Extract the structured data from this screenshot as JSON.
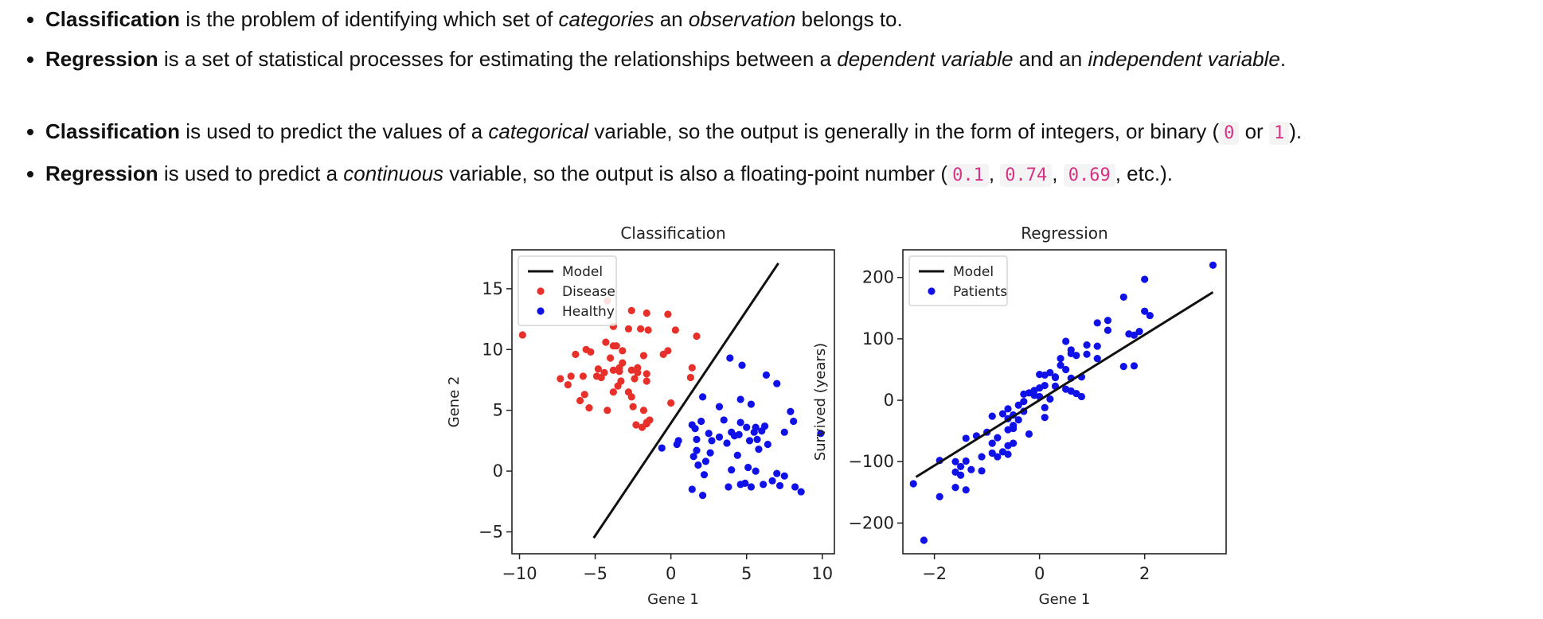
{
  "definitions": {
    "classification": {
      "term": "Classification",
      "text1": " is the problem of identifying which set of ",
      "em1": "categories",
      "text2": " an ",
      "em2": "observation",
      "text3": " belongs to."
    },
    "regression": {
      "term": "Regression",
      "text1": " is a set of statistical processes for estimating the relationships between a ",
      "em1": "dependent variable",
      "text2": " and an ",
      "em2": "independent variable",
      "text3": "."
    }
  },
  "usage": {
    "classification": {
      "term": "Classification",
      "text1": " is used to predict the values of a ",
      "em1": "categorical",
      "text2": " variable, so the output is generally in the form of integers, or binary (",
      "code1": "0",
      "text3": " or ",
      "code2": "1",
      "text4": ")."
    },
    "regression": {
      "term": "Regression",
      "text1": " is used to predict a ",
      "em1": "continuous",
      "text2": " variable, so the output is also a floating-point number (",
      "code1": "0.1",
      "sep1": ", ",
      "code2": "0.74",
      "sep2": ", ",
      "code3": "0.69",
      "text3": ", etc.)."
    }
  },
  "chart_data": [
    {
      "type": "scatter",
      "title": "Classification",
      "xlabel": "Gene 1",
      "ylabel": "Gene 2",
      "xlim": [
        -10.5,
        10.8
      ],
      "ylim": [
        -6.8,
        18.2
      ],
      "xticks": [
        "−10",
        "−5",
        "0",
        "5",
        "10"
      ],
      "xtick_values": [
        -10,
        -5,
        0,
        5,
        10
      ],
      "yticks": [
        "−5",
        "0",
        "5",
        "10",
        "15"
      ],
      "ytick_values": [
        -5,
        0,
        5,
        10,
        15
      ],
      "legend_position": "top-left",
      "legend": [
        "Model",
        "Disease",
        "Healthy"
      ],
      "colors": {
        "model": "#111111",
        "disease": "#e8302a",
        "healthy": "#1010e8"
      },
      "model_line": {
        "x": [
          -5.1,
          7.1
        ],
        "y": [
          -5.5,
          17.1
        ]
      },
      "series": [
        {
          "name": "Disease",
          "points": [
            [
              -9.8,
              11.2
            ],
            [
              -4.2,
              14.0
            ],
            [
              -2.6,
              13.2
            ],
            [
              -1.6,
              13.0
            ],
            [
              -3.8,
              11.9
            ],
            [
              -2.8,
              11.7
            ],
            [
              -2.0,
              11.7
            ],
            [
              -1.5,
              11.6
            ],
            [
              -0.2,
              12.9
            ],
            [
              0.3,
              11.6
            ],
            [
              1.7,
              11.1
            ],
            [
              -4.3,
              10.6
            ],
            [
              -3.8,
              10.3
            ],
            [
              -3.6,
              10.3
            ],
            [
              -5.6,
              10.0
            ],
            [
              -6.3,
              9.6
            ],
            [
              -5.3,
              9.8
            ],
            [
              -3.2,
              9.9
            ],
            [
              -1.8,
              9.5
            ],
            [
              -0.5,
              9.6
            ],
            [
              -0.2,
              9.9
            ],
            [
              -4.0,
              9.3
            ],
            [
              -3.2,
              8.9
            ],
            [
              -2.2,
              8.5
            ],
            [
              -3.4,
              8.2
            ],
            [
              -2.6,
              8.3
            ],
            [
              -2.2,
              8.1
            ],
            [
              -4.8,
              8.4
            ],
            [
              -4.4,
              8.1
            ],
            [
              -3.8,
              8.3
            ],
            [
              -3.4,
              8.5
            ],
            [
              -4.9,
              7.8
            ],
            [
              -1.6,
              8.0
            ],
            [
              1.4,
              8.5
            ],
            [
              -7.3,
              7.6
            ],
            [
              -6.8,
              7.1
            ],
            [
              -6.6,
              7.8
            ],
            [
              -5.8,
              7.8
            ],
            [
              -4.6,
              7.7
            ],
            [
              -3.3,
              7.4
            ],
            [
              -2.4,
              7.6
            ],
            [
              -1.6,
              7.4
            ],
            [
              1.3,
              7.7
            ],
            [
              -3.5,
              7.0
            ],
            [
              -6.0,
              5.8
            ],
            [
              -5.4,
              5.2
            ],
            [
              -4.2,
              5.0
            ],
            [
              -2.6,
              6.1
            ],
            [
              -2.5,
              5.3
            ],
            [
              -1.8,
              5.0
            ],
            [
              -1.4,
              4.2
            ],
            [
              -1.6,
              3.9
            ],
            [
              -2.3,
              3.8
            ],
            [
              -1.9,
              3.6
            ],
            [
              -1.6,
              4.0
            ],
            [
              -2.8,
              6.5
            ],
            [
              -5.7,
              6.3
            ],
            [
              0.0,
              5.6
            ],
            [
              -3.8,
              6.5
            ]
          ]
        },
        {
          "name": "Healthy",
          "points": [
            [
              3.9,
              9.3
            ],
            [
              4.7,
              8.7
            ],
            [
              6.3,
              7.9
            ],
            [
              7.0,
              7.2
            ],
            [
              2.1,
              6.1
            ],
            [
              4.6,
              5.9
            ],
            [
              5.3,
              5.5
            ],
            [
              3.2,
              5.3
            ],
            [
              7.9,
              4.9
            ],
            [
              8.1,
              4.1
            ],
            [
              1.4,
              3.8
            ],
            [
              2.0,
              4.1
            ],
            [
              3.5,
              4.2
            ],
            [
              4.6,
              4.0
            ],
            [
              5.0,
              3.6
            ],
            [
              5.6,
              3.6
            ],
            [
              6.2,
              3.7
            ],
            [
              1.6,
              3.5
            ],
            [
              2.5,
              3.1
            ],
            [
              4.0,
              3.2
            ],
            [
              4.2,
              2.9
            ],
            [
              4.5,
              3.0
            ],
            [
              5.5,
              3.2
            ],
            [
              6.0,
              3.3
            ],
            [
              7.5,
              3.2
            ],
            [
              3.2,
              2.8
            ],
            [
              1.7,
              2.6
            ],
            [
              -0.6,
              1.9
            ],
            [
              0.4,
              2.2
            ],
            [
              0.5,
              2.5
            ],
            [
              2.7,
              2.5
            ],
            [
              3.7,
              2.3
            ],
            [
              5.2,
              2.5
            ],
            [
              5.7,
              2.6
            ],
            [
              6.4,
              2.2
            ],
            [
              1.7,
              1.7
            ],
            [
              4.4,
              1.3
            ],
            [
              5.8,
              1.8
            ],
            [
              9.9,
              3.1
            ],
            [
              1.5,
              1.2
            ],
            [
              2.6,
              1.5
            ],
            [
              1.8,
              0.5
            ],
            [
              2.3,
              0.8
            ],
            [
              4.0,
              0.1
            ],
            [
              5.1,
              0.3
            ],
            [
              5.6,
              0.0
            ],
            [
              2.2,
              -0.3
            ],
            [
              7.0,
              -0.2
            ],
            [
              7.5,
              -0.4
            ],
            [
              6.7,
              -0.8
            ],
            [
              8.2,
              -1.3
            ],
            [
              8.6,
              -1.7
            ],
            [
              7.2,
              -1.2
            ],
            [
              6.1,
              -1.1
            ],
            [
              4.6,
              -1.1
            ],
            [
              4.9,
              -1.0
            ],
            [
              5.3,
              -1.3
            ],
            [
              1.4,
              -1.5
            ],
            [
              2.1,
              -2.0
            ],
            [
              3.8,
              -1.3
            ]
          ]
        }
      ]
    },
    {
      "type": "scatter",
      "title": "Regression",
      "xlabel": "Gene 1",
      "ylabel": "Survived (years)",
      "xlim": [
        -2.6,
        3.55
      ],
      "ylim": [
        -250,
        245
      ],
      "xticks": [
        "−2",
        "0",
        "2"
      ],
      "xtick_values": [
        -2,
        0,
        2
      ],
      "yticks": [
        "−200",
        "−100",
        "0",
        "100",
        "200"
      ],
      "ytick_values": [
        -200,
        -100,
        0,
        100,
        200
      ],
      "legend_position": "top-left",
      "legend": [
        "Model",
        "Patients"
      ],
      "colors": {
        "model": "#111111",
        "patients": "#1010e8"
      },
      "model_line": {
        "x": [
          -2.35,
          3.3
        ],
        "y": [
          -125,
          176
        ]
      },
      "series": [
        {
          "name": "Patients",
          "points": [
            [
              3.3,
              220
            ],
            [
              2.0,
              197
            ],
            [
              1.6,
              168
            ],
            [
              2.0,
              145
            ],
            [
              2.1,
              138
            ],
            [
              1.3,
              130
            ],
            [
              1.1,
              126
            ],
            [
              1.3,
              114
            ],
            [
              1.9,
              112
            ],
            [
              1.7,
              108
            ],
            [
              1.8,
              106
            ],
            [
              0.9,
              90
            ],
            [
              1.1,
              88
            ],
            [
              0.5,
              96
            ],
            [
              0.6,
              82
            ],
            [
              0.6,
              76
            ],
            [
              0.7,
              73
            ],
            [
              0.4,
              68
            ],
            [
              0.4,
              57
            ],
            [
              0.9,
              75
            ],
            [
              1.1,
              68
            ],
            [
              1.6,
              55
            ],
            [
              1.8,
              56
            ],
            [
              0.5,
              50
            ],
            [
              0.2,
              45
            ],
            [
              0.1,
              41
            ],
            [
              0.3,
              37
            ],
            [
              0.6,
              36
            ],
            [
              0.0,
              42
            ],
            [
              0.8,
              38
            ],
            [
              0.3,
              23
            ],
            [
              0.1,
              24
            ],
            [
              0.0,
              20
            ],
            [
              -0.2,
              12
            ],
            [
              -0.1,
              8
            ],
            [
              0.0,
              6
            ],
            [
              0.2,
              2
            ],
            [
              0.5,
              18
            ],
            [
              0.6,
              15
            ],
            [
              0.7,
              11
            ],
            [
              0.8,
              6
            ],
            [
              -0.3,
              -2
            ],
            [
              -0.4,
              -8
            ],
            [
              -0.6,
              -14
            ],
            [
              -0.7,
              -22
            ],
            [
              -0.5,
              -24
            ],
            [
              -0.6,
              -30
            ],
            [
              -0.9,
              -26
            ],
            [
              -0.3,
              -18
            ],
            [
              -0.4,
              -32
            ],
            [
              -0.5,
              -41
            ],
            [
              -0.6,
              -48
            ],
            [
              -1.0,
              -52
            ],
            [
              -1.2,
              -58
            ],
            [
              -1.4,
              -62
            ],
            [
              -0.8,
              -61
            ],
            [
              -0.2,
              -55
            ],
            [
              -0.5,
              -70
            ],
            [
              -0.6,
              -74
            ],
            [
              -0.9,
              -70
            ],
            [
              -0.7,
              -84
            ],
            [
              -0.9,
              -86
            ],
            [
              -0.8,
              -92
            ],
            [
              -0.6,
              -88
            ],
            [
              -1.1,
              -92
            ],
            [
              -1.4,
              -99
            ],
            [
              -1.6,
              -100
            ],
            [
              -1.5,
              -108
            ],
            [
              -1.3,
              -113
            ],
            [
              -1.6,
              -117
            ],
            [
              -1.1,
              -115
            ],
            [
              -1.5,
              -122
            ],
            [
              -1.9,
              -98
            ],
            [
              -2.4,
              -136
            ],
            [
              -1.6,
              -142
            ],
            [
              -1.4,
              -146
            ],
            [
              -1.9,
              -157
            ],
            [
              -2.2,
              -228
            ],
            [
              0.3,
              38
            ],
            [
              -0.3,
              10
            ],
            [
              -0.1,
              16
            ],
            [
              0.1,
              -12
            ],
            [
              -0.5,
              -46
            ],
            [
              0.1,
              -28
            ]
          ]
        }
      ]
    }
  ]
}
